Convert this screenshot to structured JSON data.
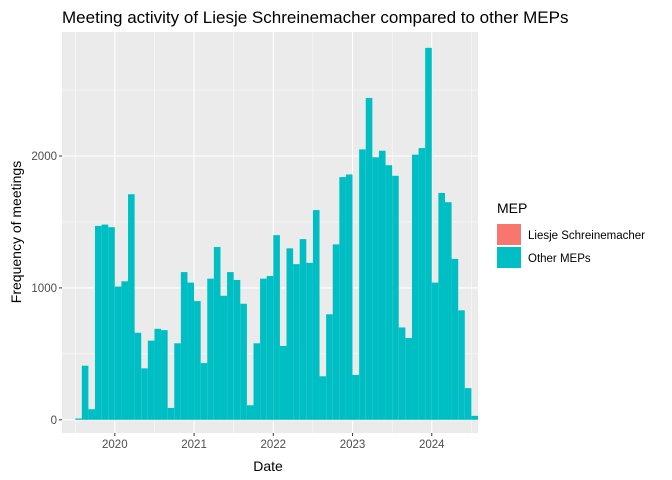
{
  "chart_data": {
    "type": "bar",
    "title": "Meeting activity of Liesje Schreinemacher compared to other MEPs",
    "xlabel": "Date",
    "ylabel": "Frequency of meetings",
    "x_ticks": [
      "2020",
      "2021",
      "2022",
      "2023",
      "2024"
    ],
    "y_ticks": [
      0,
      1000,
      2000
    ],
    "ylim": [
      -100,
      2940
    ],
    "xlim": [
      "2019-05-01",
      "2024-08-01"
    ],
    "grid": true,
    "legend": {
      "title": "MEP",
      "placement": "right",
      "entries": [
        {
          "label": "Liesje Schreinemacher",
          "color": "#F8766D"
        },
        {
          "label": "Other MEPs",
          "color": "#00BFC4"
        }
      ]
    },
    "bin_width_months": 1,
    "x": [
      "2019-07",
      "2019-08",
      "2019-09",
      "2019-10",
      "2019-11",
      "2019-12",
      "2020-01",
      "2020-02",
      "2020-03",
      "2020-04",
      "2020-05",
      "2020-06",
      "2020-07",
      "2020-08",
      "2020-09",
      "2020-10",
      "2020-11",
      "2020-12",
      "2021-01",
      "2021-02",
      "2021-03",
      "2021-04",
      "2021-05",
      "2021-06",
      "2021-07",
      "2021-08",
      "2021-09",
      "2021-10",
      "2021-11",
      "2021-12",
      "2022-01",
      "2022-02",
      "2022-03",
      "2022-04",
      "2022-05",
      "2022-06",
      "2022-07",
      "2022-08",
      "2022-09",
      "2022-10",
      "2022-11",
      "2022-12",
      "2023-01",
      "2023-02",
      "2023-03",
      "2023-04",
      "2023-05",
      "2023-06",
      "2023-07",
      "2023-08",
      "2023-09",
      "2023-10",
      "2023-11",
      "2023-12",
      "2024-01",
      "2024-02",
      "2024-03",
      "2024-04",
      "2024-05",
      "2024-06",
      "2024-07"
    ],
    "series": [
      {
        "name": "Liesje Schreinemacher",
        "color": "#F8766D",
        "values": [
          0,
          0,
          0,
          0,
          0,
          0,
          0,
          0,
          0,
          0,
          0,
          0,
          0,
          0,
          0,
          0,
          0,
          0,
          0,
          0,
          0,
          0,
          0,
          0,
          0,
          0,
          0,
          0,
          0,
          0,
          0,
          0,
          0,
          0,
          0,
          0,
          0,
          0,
          0,
          0,
          0,
          0,
          0,
          0,
          0,
          0,
          0,
          0,
          0,
          0,
          0,
          0,
          0,
          0,
          0,
          0,
          0,
          0,
          0,
          0,
          0
        ]
      },
      {
        "name": "Other MEPs",
        "color": "#00BFC4",
        "values": [
          10,
          410,
          80,
          1470,
          1480,
          1460,
          1010,
          1050,
          1710,
          660,
          390,
          600,
          690,
          680,
          90,
          580,
          1120,
          1040,
          900,
          430,
          1070,
          1310,
          940,
          1120,
          1060,
          880,
          110,
          580,
          1070,
          1090,
          1400,
          560,
          1300,
          1180,
          1370,
          1190,
          1590,
          330,
          800,
          1330,
          1840,
          1860,
          340,
          2050,
          2440,
          1990,
          2040,
          1930,
          1850,
          700,
          620,
          2010,
          2060,
          2820,
          1040,
          1720,
          1650,
          1220,
          830,
          240,
          30
        ]
      }
    ]
  }
}
